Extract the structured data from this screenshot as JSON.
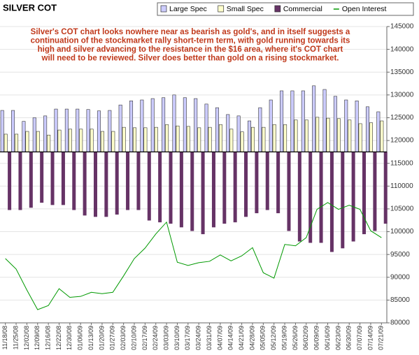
{
  "chart_data": {
    "type": "bar",
    "title": "SILVER COT",
    "annotation": [
      "Silver's COT chart looks nowhere near as bearish as gold's, and in itself suggests a",
      "continuation of the stockmarket rally short-term term, with gold running towards its",
      "high and silver advancing to the resistance in the $16 area, where it's COT chart",
      "will need to be reviewed. Silver does better than gold on a rising stockmarket."
    ],
    "categories": [
      "11/18/08",
      "11/25/08",
      "12/02/08",
      "12/09/08",
      "12/16/08",
      "12/22/08",
      "12/30/08",
      "01/06/09",
      "01/13/09",
      "01/20/09",
      "01/27/09",
      "02/03/09",
      "02/10/09",
      "02/17/09",
      "02/24/09",
      "03/03/09",
      "03/10/09",
      "03/17/09",
      "03/24/09",
      "03/31/09",
      "04/07/09",
      "04/14/09",
      "04/21/09",
      "04/28/09",
      "05/05/09",
      "05/12/09",
      "05/19/09",
      "05/26/09",
      "06/02/09",
      "06/09/09",
      "06/16/09",
      "06/23/09",
      "06/30/09",
      "07/07/09",
      "07/14/09",
      "07/21/09"
    ],
    "bar_base": 117500,
    "series": [
      {
        "name": "Large Spec",
        "type": "bar",
        "color": "#ccccff",
        "values": [
          126600,
          126600,
          124200,
          125000,
          125400,
          126900,
          126900,
          126900,
          126800,
          126500,
          126600,
          127800,
          128700,
          128900,
          129200,
          129400,
          130000,
          129400,
          129200,
          128000,
          127200,
          125700,
          125400,
          124300,
          127200,
          128900,
          130900,
          130900,
          130900,
          132000,
          131200,
          129700,
          128900,
          128700,
          127400,
          126300
        ]
      },
      {
        "name": "Small Spec",
        "type": "bar",
        "color": "#ffffcc",
        "values": [
          121400,
          121400,
          122000,
          122000,
          121200,
          122300,
          122500,
          122500,
          122500,
          122000,
          122000,
          122900,
          122800,
          122800,
          122900,
          123500,
          123200,
          123100,
          122800,
          122900,
          123500,
          122500,
          121900,
          122900,
          122900,
          123500,
          123500,
          124500,
          124500,
          125100,
          124900,
          124800,
          124500,
          123700,
          123900,
          124300
        ]
      },
      {
        "name": "Commercial",
        "type": "bar",
        "color": "#663366",
        "values": [
          104800,
          104800,
          105300,
          106400,
          105900,
          105900,
          104800,
          103600,
          103300,
          103300,
          103800,
          104800,
          104800,
          102500,
          102100,
          101800,
          101000,
          100200,
          99500,
          101000,
          101800,
          102100,
          103300,
          104100,
          104800,
          104100,
          100200,
          97900,
          97600,
          97600,
          95600,
          96400,
          97900,
          99500,
          100200,
          101800
        ]
      },
      {
        "name": "Open Interest",
        "type": "line",
        "color": "#009900",
        "values": [
          94100,
          91800,
          87200,
          82900,
          83800,
          87500,
          85600,
          85800,
          86700,
          86400,
          86700,
          90300,
          94100,
          96400,
          99500,
          102100,
          93300,
          92600,
          93200,
          93500,
          94900,
          93600,
          94700,
          96500,
          91000,
          89800,
          97200,
          96900,
          98700,
          104900,
          106400,
          104900,
          105800,
          104900,
          100200,
          98700
        ]
      }
    ],
    "ylim": [
      80000,
      145000
    ],
    "yticks": [
      80000,
      85000,
      90000,
      95000,
      100000,
      105000,
      110000,
      115000,
      120000,
      125000,
      130000,
      135000,
      140000,
      145000
    ],
    "grid": true
  }
}
